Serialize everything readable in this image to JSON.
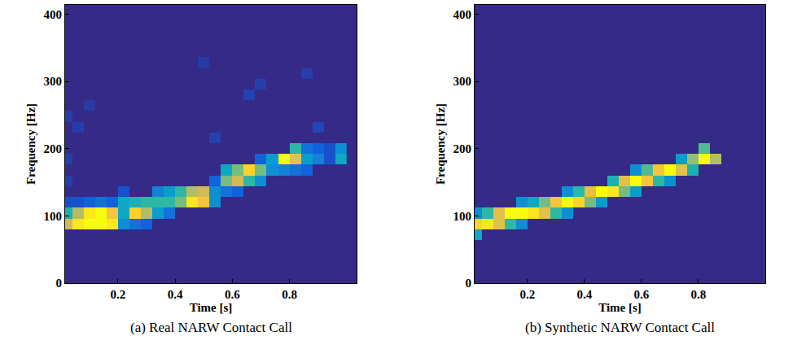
{
  "chart_data": [
    {
      "type": "heatmap",
      "title": "(a) Real NARW Contact Call",
      "x_label": "Time [s]",
      "y_label": "Frequency [Hz]",
      "xlim": [
        0.015,
        1.035
      ],
      "ylim": [
        0,
        414
      ],
      "xticks": [
        0.2,
        0.4,
        0.6,
        0.8
      ],
      "yticks": [
        0,
        100,
        200,
        300,
        400
      ],
      "zlim": [
        0,
        1
      ],
      "x": [
        0.02,
        0.06,
        0.1,
        0.14,
        0.18,
        0.22,
        0.26,
        0.3,
        0.34,
        0.38,
        0.42,
        0.46,
        0.5,
        0.54,
        0.58,
        0.62,
        0.66,
        0.7,
        0.74,
        0.78,
        0.82,
        0.86,
        0.9,
        0.94,
        0.98
      ],
      "y": [
        8,
        24,
        40,
        56,
        72,
        88,
        104,
        120,
        136,
        152,
        168,
        184,
        200,
        216,
        232,
        248,
        264,
        280,
        296,
        312,
        328,
        344,
        360,
        376
      ],
      "z": [
        [
          0,
          0,
          0,
          0,
          0,
          0,
          0,
          0,
          0,
          0,
          0,
          0,
          0,
          0,
          0,
          0,
          0,
          0,
          0,
          0,
          0,
          0,
          0,
          0,
          0
        ],
        [
          0,
          0,
          0,
          0,
          0,
          0,
          0,
          0,
          0,
          0,
          0,
          0,
          0,
          0,
          0,
          0,
          0,
          0,
          0,
          0,
          0,
          0,
          0,
          0,
          0
        ],
        [
          0,
          0,
          0,
          0,
          0,
          0,
          0,
          0,
          0,
          0,
          0,
          0,
          0,
          0,
          0,
          0,
          0,
          0,
          0,
          0,
          0,
          0,
          0,
          0,
          0
        ],
        [
          0,
          0,
          0,
          0,
          0,
          0,
          0,
          0,
          0,
          0,
          0,
          0,
          0,
          0,
          0,
          0,
          0,
          0,
          0,
          0,
          0,
          0,
          0,
          0,
          0
        ],
        [
          0,
          0,
          0,
          0,
          0,
          0,
          0,
          0,
          0,
          0,
          0,
          0,
          0,
          0,
          0,
          0,
          0,
          0,
          0,
          0,
          0,
          0,
          0,
          0,
          0
        ],
        [
          0.75,
          0.95,
          1,
          1,
          0.95,
          0.3,
          0.2,
          0.15,
          0,
          0,
          0,
          0,
          0,
          0,
          0,
          0,
          0,
          0,
          0,
          0,
          0,
          0,
          0,
          0,
          0
        ],
        [
          0.45,
          0.7,
          0.95,
          1,
          0.85,
          0.4,
          0.9,
          0.7,
          0.35,
          0.2,
          0,
          0,
          0,
          0,
          0,
          0,
          0,
          0,
          0,
          0,
          0,
          0,
          0,
          0,
          0
        ],
        [
          0.1,
          0.1,
          0.15,
          0.2,
          0.15,
          0.4,
          0.45,
          0.5,
          0.5,
          0.5,
          0.6,
          0.95,
          0.85,
          0.3,
          0,
          0,
          0,
          0,
          0,
          0,
          0,
          0,
          0,
          0,
          0
        ],
        [
          0,
          0,
          0,
          0,
          0,
          0.1,
          0,
          0,
          0.25,
          0.35,
          0.5,
          0.7,
          0.75,
          0.3,
          0.2,
          0.15,
          0,
          0,
          0,
          0,
          0,
          0,
          0,
          0,
          0
        ],
        [
          0.05,
          0,
          0,
          0,
          0,
          0,
          0,
          0,
          0,
          0,
          0,
          0,
          0,
          0.15,
          0.6,
          0.75,
          0.5,
          0.3,
          0,
          0,
          0,
          0,
          0,
          0,
          0
        ],
        [
          0,
          0,
          0,
          0,
          0,
          0,
          0,
          0,
          0,
          0,
          0,
          0,
          0,
          0,
          0.4,
          0.6,
          0.9,
          0.6,
          0.3,
          0.25,
          0.2,
          0.15,
          0,
          0,
          0
        ],
        [
          0.05,
          0,
          0,
          0,
          0,
          0,
          0,
          0,
          0,
          0,
          0,
          0,
          0,
          0,
          0,
          0,
          0,
          0.15,
          0.35,
          1,
          0.8,
          0.35,
          0.25,
          0.1,
          0.4
        ],
        [
          0,
          0,
          0,
          0,
          0,
          0,
          0,
          0,
          0,
          0,
          0,
          0,
          0,
          0,
          0,
          0,
          0,
          0,
          0,
          0,
          0.5,
          0.2,
          0.15,
          0.1,
          0.3
        ],
        [
          0,
          0,
          0,
          0,
          0,
          0,
          0,
          0,
          0,
          0,
          0,
          0,
          0,
          0.06,
          0,
          0,
          0,
          0,
          0,
          0,
          0,
          0,
          0,
          0,
          0
        ],
        [
          0,
          0.05,
          0,
          0,
          0,
          0,
          0,
          0,
          0,
          0,
          0,
          0,
          0,
          0,
          0,
          0,
          0,
          0,
          0,
          0,
          0,
          0,
          0.07,
          0,
          0
        ],
        [
          0.05,
          0,
          0,
          0,
          0,
          0,
          0,
          0,
          0,
          0,
          0,
          0,
          0,
          0,
          0,
          0,
          0,
          0,
          0,
          0,
          0,
          0,
          0,
          0,
          0
        ],
        [
          0,
          0,
          0.04,
          0,
          0,
          0,
          0,
          0,
          0,
          0,
          0,
          0,
          0,
          0,
          0,
          0,
          0,
          0,
          0,
          0,
          0,
          0,
          0,
          0,
          0
        ],
        [
          0,
          0,
          0,
          0,
          0,
          0,
          0,
          0,
          0,
          0,
          0,
          0,
          0,
          0,
          0,
          0,
          0.06,
          0,
          0,
          0,
          0,
          0,
          0,
          0,
          0
        ],
        [
          0,
          0,
          0,
          0,
          0,
          0,
          0,
          0,
          0,
          0,
          0,
          0,
          0,
          0,
          0,
          0,
          0,
          0.05,
          0,
          0,
          0,
          0,
          0,
          0,
          0
        ],
        [
          0,
          0,
          0,
          0,
          0,
          0,
          0,
          0,
          0,
          0,
          0,
          0,
          0,
          0,
          0,
          0,
          0,
          0,
          0,
          0,
          0,
          0.05,
          0,
          0,
          0
        ],
        [
          0,
          0,
          0,
          0,
          0,
          0,
          0,
          0,
          0,
          0,
          0,
          0,
          0.04,
          0,
          0,
          0,
          0,
          0,
          0,
          0,
          0,
          0,
          0,
          0,
          0
        ],
        [
          0,
          0,
          0,
          0,
          0,
          0,
          0,
          0,
          0,
          0,
          0,
          0,
          0,
          0,
          0,
          0,
          0,
          0,
          0,
          0,
          0,
          0,
          0,
          0,
          0
        ],
        [
          0,
          0,
          0,
          0,
          0,
          0,
          0,
          0,
          0,
          0,
          0,
          0,
          0,
          0,
          0,
          0,
          0,
          0,
          0,
          0,
          0,
          0,
          0,
          0,
          0
        ],
        [
          0,
          0,
          0,
          0,
          0,
          0,
          0,
          0,
          0,
          0,
          0,
          0,
          0,
          0,
          0,
          0,
          0,
          0,
          0,
          0,
          0,
          0,
          0,
          0,
          0
        ]
      ]
    },
    {
      "type": "heatmap",
      "title": "(b) Synthetic NARW Contact Call",
      "x_label": "Time [s]",
      "y_label": "Frequency [Hz]",
      "xlim": [
        0.015,
        1.035
      ],
      "ylim": [
        0,
        414
      ],
      "xticks": [
        0.2,
        0.4,
        0.6,
        0.8
      ],
      "yticks": [
        0,
        100,
        200,
        300,
        400
      ],
      "zlim": [
        0,
        1
      ],
      "x": [
        0.02,
        0.06,
        0.1,
        0.14,
        0.18,
        0.22,
        0.26,
        0.3,
        0.34,
        0.38,
        0.42,
        0.46,
        0.5,
        0.54,
        0.58,
        0.62,
        0.66,
        0.7,
        0.74,
        0.78,
        0.82,
        0.86,
        0.9,
        0.94,
        0.98
      ],
      "y": [
        8,
        24,
        40,
        56,
        72,
        88,
        104,
        120,
        136,
        152,
        168,
        184,
        200,
        216,
        232,
        248,
        264,
        280,
        296,
        312,
        328,
        344,
        360,
        376
      ],
      "z": [
        [
          0,
          0,
          0,
          0,
          0,
          0,
          0,
          0,
          0,
          0,
          0,
          0,
          0,
          0,
          0,
          0,
          0,
          0,
          0,
          0,
          0,
          0,
          0,
          0,
          0
        ],
        [
          0,
          0,
          0,
          0,
          0,
          0,
          0,
          0,
          0,
          0,
          0,
          0,
          0,
          0,
          0,
          0,
          0,
          0,
          0,
          0,
          0,
          0,
          0,
          0,
          0
        ],
        [
          0,
          0,
          0,
          0,
          0,
          0,
          0,
          0,
          0,
          0,
          0,
          0,
          0,
          0,
          0,
          0,
          0,
          0,
          0,
          0,
          0,
          0,
          0,
          0,
          0
        ],
        [
          0,
          0,
          0,
          0,
          0,
          0,
          0,
          0,
          0,
          0,
          0,
          0,
          0,
          0,
          0,
          0,
          0,
          0,
          0,
          0,
          0,
          0,
          0,
          0,
          0
        ],
        [
          0.4,
          0,
          0,
          0,
          0,
          0,
          0,
          0,
          0,
          0,
          0,
          0,
          0,
          0,
          0,
          0,
          0,
          0,
          0,
          0,
          0,
          0,
          0,
          0,
          0
        ],
        [
          0.9,
          0.95,
          0.8,
          0.5,
          0.3,
          0,
          0,
          0,
          0,
          0,
          0,
          0,
          0,
          0,
          0,
          0,
          0,
          0,
          0,
          0,
          0,
          0,
          0,
          0,
          0
        ],
        [
          0.3,
          0.5,
          0.8,
          1,
          1,
          0.95,
          0.8,
          0.5,
          0.3,
          0,
          0,
          0,
          0,
          0,
          0,
          0,
          0,
          0,
          0,
          0,
          0,
          0,
          0,
          0,
          0
        ],
        [
          0,
          0,
          0,
          0,
          0.3,
          0.4,
          0.6,
          0.85,
          1,
          0.9,
          0.6,
          0.35,
          0,
          0,
          0,
          0,
          0,
          0,
          0,
          0,
          0,
          0,
          0,
          0,
          0
        ],
        [
          0,
          0,
          0,
          0,
          0,
          0,
          0,
          0,
          0.3,
          0.5,
          0.8,
          1,
          0.95,
          0.6,
          0.35,
          0,
          0,
          0,
          0,
          0,
          0,
          0,
          0,
          0,
          0
        ],
        [
          0,
          0,
          0,
          0,
          0,
          0,
          0,
          0,
          0,
          0,
          0,
          0,
          0.45,
          0.8,
          1,
          0.85,
          0.5,
          0.3,
          0,
          0,
          0,
          0,
          0,
          0,
          0
        ],
        [
          0,
          0,
          0,
          0,
          0,
          0,
          0,
          0,
          0,
          0,
          0,
          0,
          0,
          0,
          0.3,
          0.55,
          0.85,
          1,
          0.8,
          0.45,
          0,
          0,
          0,
          0,
          0
        ],
        [
          0,
          0,
          0,
          0,
          0,
          0,
          0,
          0,
          0,
          0,
          0,
          0,
          0,
          0,
          0,
          0,
          0,
          0,
          0.35,
          0.65,
          1,
          0.7,
          0,
          0,
          0
        ],
        [
          0,
          0,
          0,
          0,
          0,
          0,
          0,
          0,
          0,
          0,
          0,
          0,
          0,
          0,
          0,
          0,
          0,
          0,
          0,
          0,
          0.55,
          0,
          0,
          0,
          0
        ],
        [
          0,
          0,
          0,
          0,
          0,
          0,
          0,
          0,
          0,
          0,
          0,
          0,
          0,
          0,
          0,
          0,
          0,
          0,
          0,
          0,
          0,
          0,
          0,
          0,
          0
        ],
        [
          0,
          0,
          0,
          0,
          0,
          0,
          0,
          0,
          0,
          0,
          0,
          0,
          0,
          0,
          0,
          0,
          0,
          0,
          0,
          0,
          0,
          0,
          0,
          0,
          0
        ],
        [
          0,
          0,
          0,
          0,
          0,
          0,
          0,
          0,
          0,
          0,
          0,
          0,
          0,
          0,
          0,
          0,
          0,
          0,
          0,
          0,
          0,
          0,
          0,
          0,
          0
        ],
        [
          0,
          0,
          0,
          0,
          0,
          0,
          0,
          0,
          0,
          0,
          0,
          0,
          0,
          0,
          0,
          0,
          0,
          0,
          0,
          0,
          0,
          0,
          0,
          0,
          0
        ],
        [
          0,
          0,
          0,
          0,
          0,
          0,
          0,
          0,
          0,
          0,
          0,
          0,
          0,
          0,
          0,
          0,
          0,
          0,
          0,
          0,
          0,
          0,
          0,
          0,
          0
        ],
        [
          0,
          0,
          0,
          0,
          0,
          0,
          0,
          0,
          0,
          0,
          0,
          0,
          0,
          0,
          0,
          0,
          0,
          0,
          0,
          0,
          0,
          0,
          0,
          0,
          0
        ],
        [
          0,
          0,
          0,
          0,
          0,
          0,
          0,
          0,
          0,
          0,
          0,
          0,
          0,
          0,
          0,
          0,
          0,
          0,
          0,
          0,
          0,
          0,
          0,
          0,
          0
        ],
        [
          0,
          0,
          0,
          0,
          0,
          0,
          0,
          0,
          0,
          0,
          0,
          0,
          0,
          0,
          0,
          0,
          0,
          0,
          0,
          0,
          0,
          0,
          0,
          0,
          0
        ],
        [
          0,
          0,
          0,
          0,
          0,
          0,
          0,
          0,
          0,
          0,
          0,
          0,
          0,
          0,
          0,
          0,
          0,
          0,
          0,
          0,
          0,
          0,
          0,
          0,
          0
        ],
        [
          0,
          0,
          0,
          0,
          0,
          0,
          0,
          0,
          0,
          0,
          0,
          0,
          0,
          0,
          0,
          0,
          0,
          0,
          0,
          0,
          0,
          0,
          0,
          0,
          0
        ],
        [
          0,
          0,
          0,
          0,
          0,
          0,
          0,
          0,
          0,
          0,
          0,
          0,
          0,
          0,
          0,
          0,
          0,
          0,
          0,
          0,
          0,
          0,
          0,
          0,
          0
        ]
      ]
    }
  ]
}
